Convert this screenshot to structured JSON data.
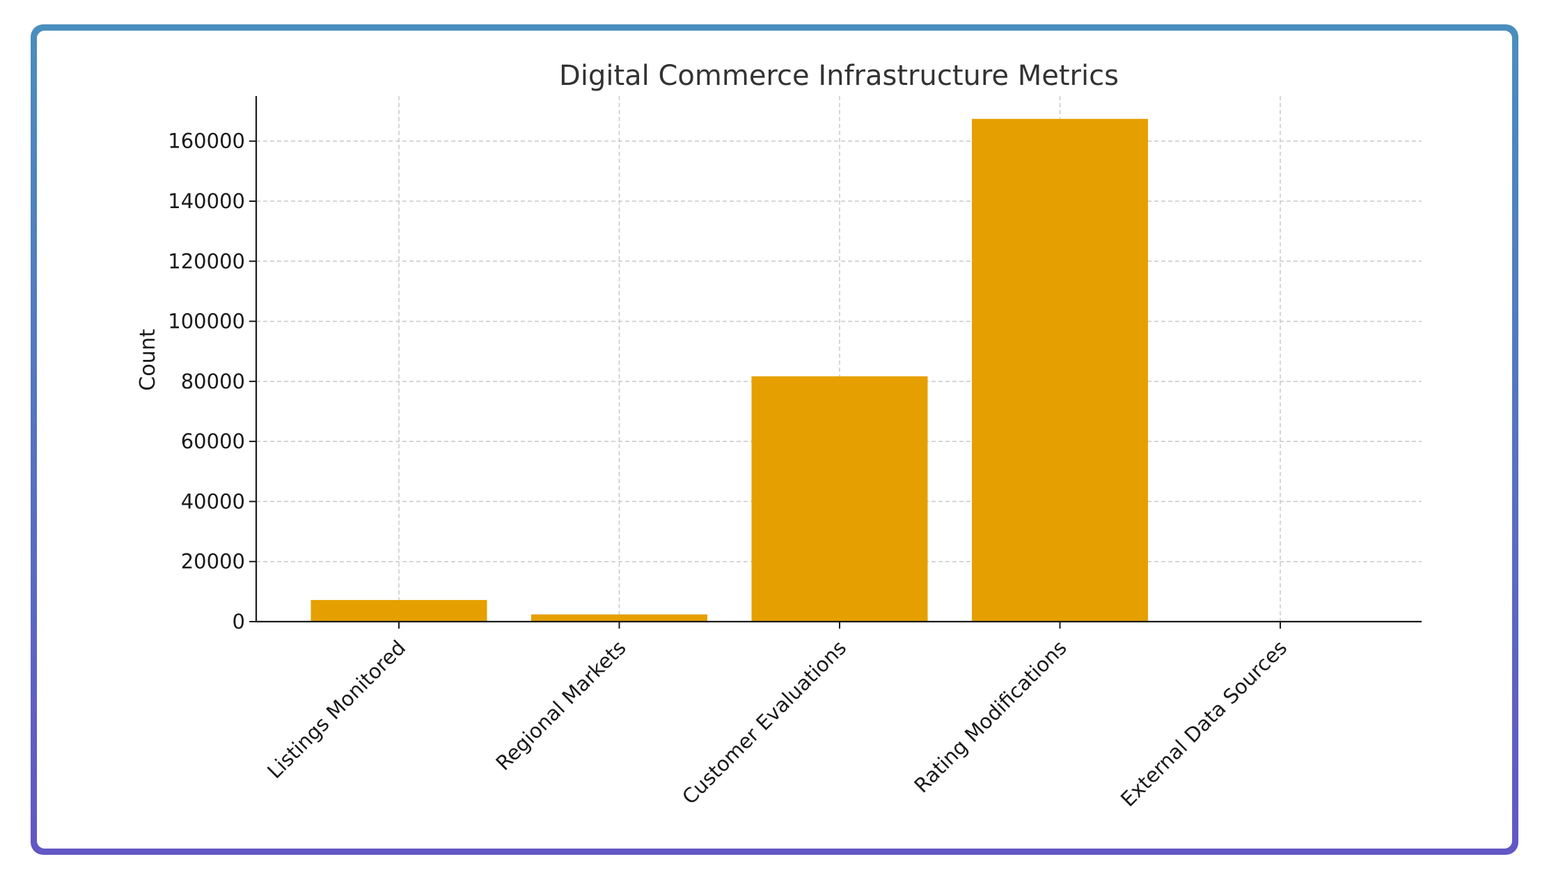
{
  "colors": {
    "bar": "#e5a000",
    "grid": "#c8c8c8",
    "axis": "#1a1a1a",
    "frame_top": "#4a8ebd",
    "frame_bottom": "#6257c4"
  },
  "chart_data": {
    "type": "bar",
    "title": "Digital Commerce Infrastructure Metrics",
    "xlabel": "",
    "ylabel": "Count",
    "ylim": [
      0,
      175000
    ],
    "yticks": [
      0,
      20000,
      40000,
      60000,
      80000,
      100000,
      120000,
      140000,
      160000
    ],
    "grid": true,
    "categories": [
      "Listings Monitored",
      "Regional Markets",
      "Customer Evaluations",
      "Rating Modifications",
      "External Data Sources"
    ],
    "values": [
      7200,
      2400,
      81700,
      167400,
      0
    ]
  }
}
